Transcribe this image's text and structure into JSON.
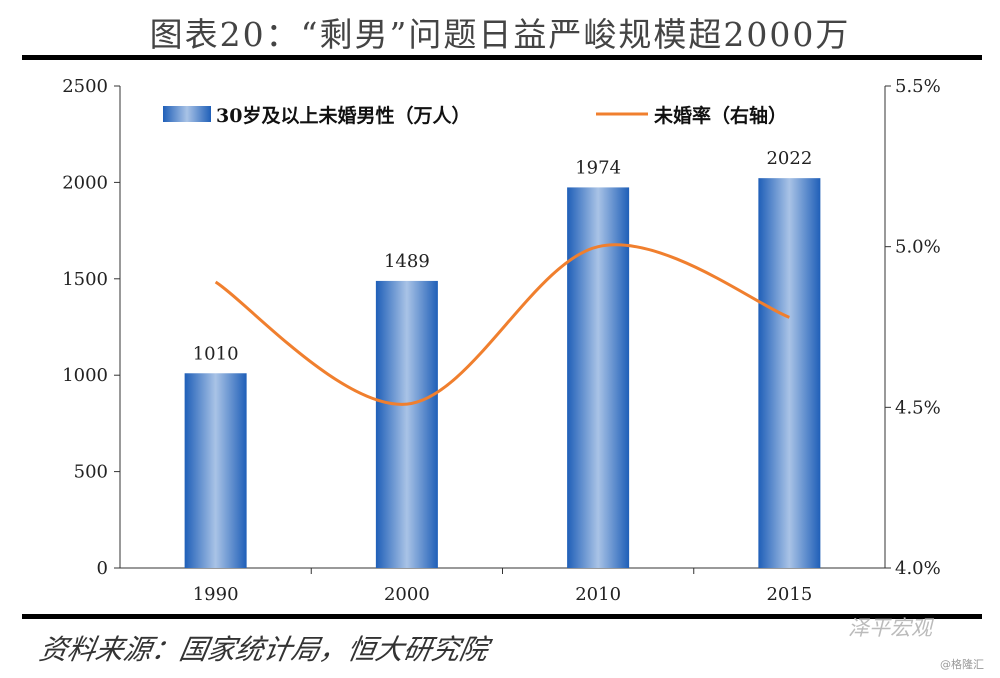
{
  "title": "图表20：“剩男”问题日益严峻规模超2000万",
  "source": "资料来源：国家统计局，恒大研究院",
  "watermark": "泽平宏观",
  "watermark_sub": "@格隆汇",
  "chart_data": {
    "type": "bar+line",
    "categories": [
      "1990",
      "2000",
      "2010",
      "2015"
    ],
    "series": [
      {
        "name": "30岁及以上未婚男性（万人）",
        "type": "bar",
        "axis": "left",
        "values": [
          1010,
          1489,
          1974,
          2022
        ],
        "color": "#2e6bc0"
      },
      {
        "name": "未婚率（右轴）",
        "type": "line",
        "axis": "right",
        "values": [
          4.89,
          4.51,
          5.0,
          4.78
        ],
        "color": "#f07f2e"
      }
    ],
    "ylim_left": [
      0,
      2500
    ],
    "yticks_left": [
      "0",
      "500",
      "1000",
      "1500",
      "2000",
      "2500"
    ],
    "ylim_right": [
      4.0,
      5.5
    ],
    "yticks_right": [
      "4.0%",
      "4.5%",
      "5.0%",
      "5.5%"
    ],
    "legend": "top",
    "grid": false
  }
}
